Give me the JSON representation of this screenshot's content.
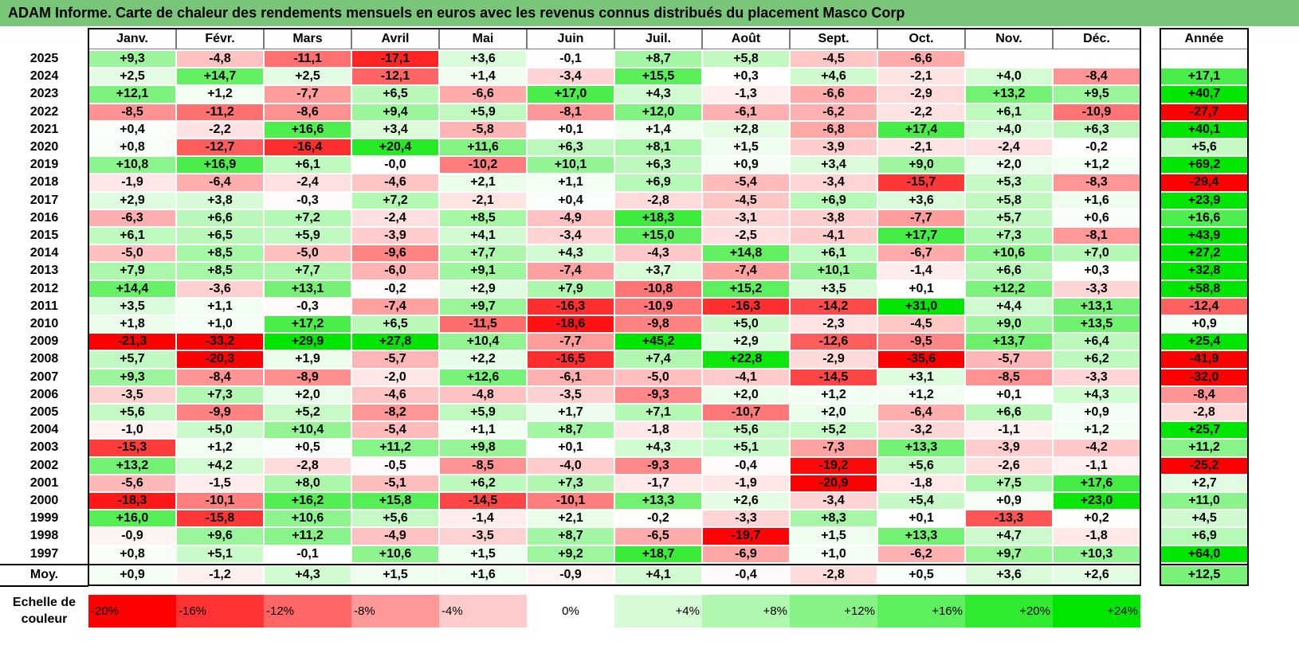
{
  "title": "ADAM Informe. Carte de chaleur des rendements mensuels en euros avec les revenus connus distribués du placement Masco Corp",
  "chart_data": {
    "type": "heatmap",
    "months": [
      "Janv.",
      "Févr.",
      "Mars",
      "Avril",
      "Mai",
      "Juin",
      "Juil.",
      "Août",
      "Sept.",
      "Oct.",
      "Nov.",
      "Déc."
    ],
    "annual_header": "Année",
    "rows": [
      {
        "year": "2025",
        "values": [
          9.3,
          -4.8,
          -11.1,
          -17.1,
          3.6,
          -0.1,
          8.7,
          5.8,
          -4.5,
          -6.6,
          null,
          null
        ],
        "annual": null
      },
      {
        "year": "2024",
        "values": [
          2.5,
          14.7,
          2.5,
          -12.1,
          1.4,
          -3.4,
          15.5,
          0.3,
          4.6,
          -2.1,
          4.0,
          -8.4
        ],
        "annual": 17.1
      },
      {
        "year": "2023",
        "values": [
          12.1,
          1.2,
          -7.7,
          6.5,
          -6.6,
          17.0,
          4.3,
          -1.3,
          -6.6,
          -2.9,
          13.2,
          9.5
        ],
        "annual": 40.7
      },
      {
        "year": "2022",
        "values": [
          -8.5,
          -11.2,
          -8.6,
          9.4,
          5.9,
          -8.1,
          12.0,
          -6.1,
          -6.2,
          -2.2,
          6.1,
          -10.9
        ],
        "annual": -27.7
      },
      {
        "year": "2021",
        "values": [
          0.4,
          -2.2,
          16.6,
          3.4,
          -5.8,
          0.1,
          1.4,
          2.8,
          -6.8,
          17.4,
          4.0,
          6.3
        ],
        "annual": 40.1
      },
      {
        "year": "2020",
        "values": [
          0.8,
          -12.7,
          -16.4,
          20.4,
          11.6,
          6.3,
          8.1,
          1.5,
          -3.9,
          -2.1,
          -2.4,
          -0.2
        ],
        "annual": 5.6
      },
      {
        "year": "2019",
        "values": [
          10.8,
          16.9,
          6.1,
          -0.0,
          -10.2,
          10.1,
          6.3,
          0.9,
          3.4,
          9.0,
          2.0,
          1.2
        ],
        "annual": 69.2
      },
      {
        "year": "2018",
        "values": [
          -1.9,
          -6.4,
          -2.4,
          -4.6,
          2.1,
          1.1,
          6.9,
          -5.4,
          -3.4,
          -15.7,
          5.3,
          -8.3
        ],
        "annual": -29.4
      },
      {
        "year": "2017",
        "values": [
          2.9,
          3.8,
          -0.3,
          7.2,
          -2.1,
          0.4,
          -2.8,
          -4.5,
          6.9,
          3.6,
          5.8,
          1.6
        ],
        "annual": 23.9
      },
      {
        "year": "2016",
        "values": [
          -6.3,
          6.6,
          7.2,
          -2.4,
          8.5,
          -4.9,
          18.3,
          -3.1,
          -3.8,
          -7.7,
          5.7,
          0.6
        ],
        "annual": 16.6
      },
      {
        "year": "2015",
        "values": [
          6.1,
          6.5,
          5.9,
          -3.9,
          4.1,
          -3.4,
          15.0,
          -2.5,
          -4.1,
          17.7,
          7.3,
          -8.1
        ],
        "annual": 43.9
      },
      {
        "year": "2014",
        "values": [
          -5.0,
          8.5,
          -5.0,
          -9.6,
          7.7,
          4.3,
          -4.3,
          14.8,
          6.1,
          -6.7,
          10.6,
          7.0
        ],
        "annual": 27.2
      },
      {
        "year": "2013",
        "values": [
          7.9,
          8.5,
          7.7,
          -6.0,
          9.1,
          -7.4,
          3.7,
          -7.4,
          10.1,
          -1.4,
          6.6,
          0.3
        ],
        "annual": 32.8
      },
      {
        "year": "2012",
        "values": [
          14.4,
          -3.6,
          13.1,
          -0.2,
          2.9,
          7.9,
          -10.8,
          15.2,
          3.5,
          0.1,
          12.2,
          -3.3
        ],
        "annual": 58.8
      },
      {
        "year": "2011",
        "values": [
          3.5,
          1.1,
          -0.3,
          -7.4,
          9.7,
          -16.3,
          -10.9,
          -16.3,
          -14.2,
          31.0,
          4.4,
          13.1
        ],
        "annual": -12.4
      },
      {
        "year": "2010",
        "values": [
          1.8,
          1.0,
          17.2,
          6.5,
          -11.5,
          -18.6,
          -9.8,
          5.0,
          -2.3,
          -4.5,
          9.0,
          13.5
        ],
        "annual": 0.9
      },
      {
        "year": "2009",
        "values": [
          -21.3,
          -33.2,
          29.9,
          27.8,
          10.4,
          -7.7,
          45.2,
          2.9,
          -12.6,
          -9.5,
          13.7,
          6.4
        ],
        "annual": 25.4
      },
      {
        "year": "2008",
        "values": [
          5.7,
          -20.3,
          1.9,
          -5.7,
          2.2,
          -16.5,
          7.4,
          22.8,
          -2.9,
          -35.6,
          -5.7,
          6.2
        ],
        "annual": -41.9
      },
      {
        "year": "2007",
        "values": [
          9.3,
          -8.4,
          -8.9,
          -2.0,
          12.6,
          -6.1,
          -5.0,
          -4.1,
          -14.5,
          3.1,
          -8.5,
          -3.3
        ],
        "annual": -32.0
      },
      {
        "year": "2006",
        "values": [
          -3.5,
          7.3,
          2.0,
          -4.6,
          -4.8,
          -3.5,
          -9.3,
          2.0,
          1.2,
          1.2,
          0.1,
          4.3
        ],
        "annual": -8.4
      },
      {
        "year": "2005",
        "values": [
          5.6,
          -9.9,
          5.2,
          -8.2,
          5.9,
          1.7,
          7.1,
          -10.7,
          2.0,
          -6.4,
          6.6,
          0.9
        ],
        "annual": -2.8
      },
      {
        "year": "2004",
        "values": [
          -1.0,
          5.0,
          10.4,
          -5.4,
          1.1,
          8.7,
          -1.8,
          5.6,
          5.2,
          -3.2,
          -1.1,
          1.2
        ],
        "annual": 25.7
      },
      {
        "year": "2003",
        "values": [
          -15.3,
          1.2,
          0.5,
          11.2,
          9.8,
          0.1,
          4.3,
          5.1,
          -7.3,
          13.3,
          -3.9,
          -4.2
        ],
        "annual": 11.2
      },
      {
        "year": "2002",
        "values": [
          13.2,
          4.2,
          -2.8,
          -0.5,
          -8.5,
          -4.0,
          -9.3,
          -0.4,
          -19.2,
          5.6,
          -2.6,
          -1.1
        ],
        "annual": -25.2
      },
      {
        "year": "2001",
        "values": [
          -5.6,
          -1.5,
          8.0,
          -5.1,
          6.2,
          7.3,
          -1.7,
          -1.9,
          -20.9,
          -1.8,
          7.5,
          17.6
        ],
        "annual": 2.7
      },
      {
        "year": "2000",
        "values": [
          -18.3,
          -10.1,
          16.2,
          15.8,
          -14.5,
          -10.1,
          13.3,
          2.6,
          -3.4,
          5.4,
          0.9,
          23.0
        ],
        "annual": 11.0
      },
      {
        "year": "1999",
        "values": [
          16.0,
          -15.8,
          10.6,
          5.6,
          -1.4,
          2.1,
          -0.2,
          -3.3,
          8.3,
          0.1,
          -13.3,
          0.2
        ],
        "annual": 4.5
      },
      {
        "year": "1998",
        "values": [
          -0.9,
          9.6,
          11.2,
          -4.9,
          -3.5,
          8.7,
          -6.5,
          -19.7,
          1.5,
          13.3,
          4.7,
          -1.8
        ],
        "annual": 6.9
      },
      {
        "year": "1997",
        "values": [
          0.8,
          5.1,
          -0.1,
          10.6,
          1.5,
          9.2,
          18.7,
          -6.9,
          1.0,
          -6.2,
          9.7,
          10.3
        ],
        "annual": 64.0
      }
    ],
    "average": {
      "label": "Moy.",
      "values": [
        0.9,
        -1.2,
        4.3,
        1.5,
        1.6,
        -0.9,
        4.1,
        -0.4,
        -2.8,
        0.5,
        3.6,
        2.6
      ],
      "annual": 12.5
    },
    "color_scale": {
      "label_line1": "Echelle de",
      "label_line2": "couleur",
      "stops": [
        {
          "label": "-20%",
          "value": -20,
          "color": "#ff0000"
        },
        {
          "label": "-16%",
          "value": -16,
          "color": "#ff3333"
        },
        {
          "label": "-12%",
          "value": -12,
          "color": "#ff6666"
        },
        {
          "label": "-8%",
          "value": -8,
          "color": "#ff9999"
        },
        {
          "label": "-4%",
          "value": -4,
          "color": "#ffcccc"
        },
        {
          "label": "0%",
          "value": 0,
          "color": "#ffffff"
        },
        {
          "label": "+4%",
          "value": 4,
          "color": "#d7fbd7"
        },
        {
          "label": "+8%",
          "value": 8,
          "color": "#b0f7b0"
        },
        {
          "label": "+12%",
          "value": 12,
          "color": "#87f387"
        },
        {
          "label": "+16%",
          "value": 16,
          "color": "#5def5d"
        },
        {
          "label": "+20%",
          "value": 20,
          "color": "#30ea30"
        },
        {
          "label": "+24%",
          "value": 24,
          "color": "#00e600"
        }
      ]
    }
  }
}
